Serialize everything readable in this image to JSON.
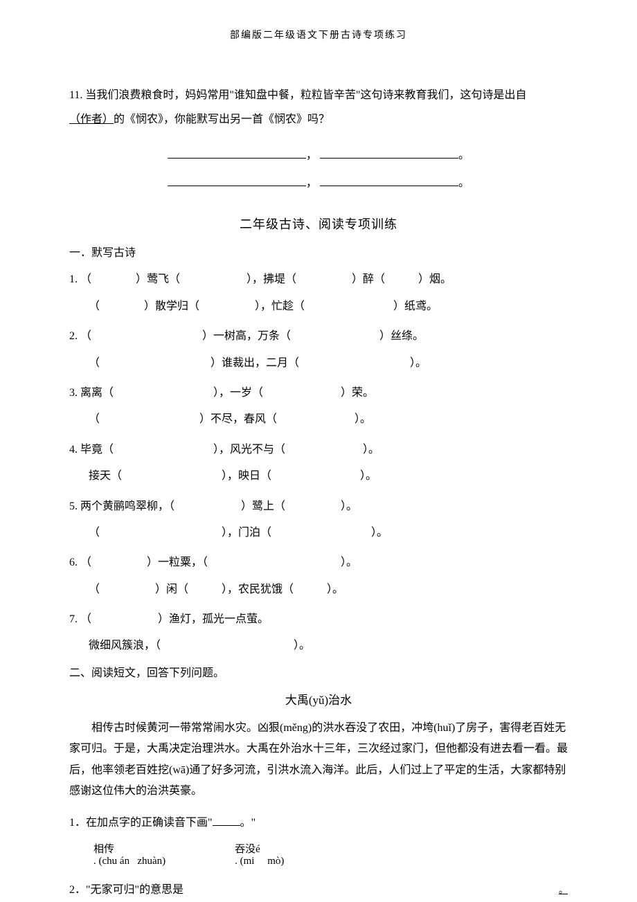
{
  "header": "部编版二年级语文下册古诗专项练习",
  "q11": {
    "number": "11.",
    "text_part1": "当我们浪费粮食时，妈妈常用\"谁知盘中餐，粒粒皆辛苦\"这句诗来教育我们，这句诗是出自",
    "author_underline": "（作者）",
    "text_part2": "的《悯农》，你能默写出另一首《悯农》吗？"
  },
  "blank_separator1": "，",
  "blank_separator2": "。",
  "section_title": "二年级古诗、阅读专项训练",
  "subsection1": "一．默写古诗",
  "exercises": [
    {
      "num": "1.",
      "line1": "（　　　　）莺飞（　　　　　　），拂堤（　　　　　）醉（　　　）烟。",
      "line2": "（　　　　）散学归（　　　　　），忙趁（　　　　　　　　）纸鸢。"
    },
    {
      "num": "2.",
      "line1": "（　　　　　　　　　　）一树高，万条（　　　　　　　　）丝绦。",
      "line2": "（　　　　　　　　　　）谁裁出，二月（　　　　　　　　　　）。"
    },
    {
      "num": "3.",
      "line1": "离离（　　　　　　　　　），一岁（　　　　　　　）荣。",
      "line2": "（　　　　　　　　　）不尽，春风（　　　　　　　）。"
    },
    {
      "num": "4.",
      "line1": "毕竟（　　　　　　　　　），风光不与（　　　　　　　）。",
      "line2": "接天（　　　　　　　　　），映日（　　　　　　　　）。"
    },
    {
      "num": "5.",
      "line1": "两个黄鹂鸣翠柳，（　　　　　　）鹭上（　　　　　）。",
      "line2": "（　　　　　　　　　　　），门泊（　　　　　　　　　）。"
    },
    {
      "num": "6.",
      "line1": "（　　　　　）一粒粟，（　　　　　　　　　　　　）。",
      "line2": "（　　　　　）闲（　　　），农民犹饿（　　　）。"
    },
    {
      "num": "7.",
      "line1": "（　　　　　　）渔灯，孤光一点萤。",
      "line2": "微细风簇浪，（　　　　　　　　　　　　）。"
    }
  ],
  "subsection2": "二、阅读短文，回答下列问题。",
  "story_title": "大禹(yǔ)治水",
  "story_text": "相传古时候黄河一带常常闹水灾。凶狠(měng)的洪水吞没了农田，冲垮(huǐ)了房子，害得老百姓无家可归。于是，大禹决定治理洪水。大禹在外治水十三年，三次经过家门，但他都没有进去看一看。最后，他率领老百姓挖(wā)通了好多河流，引洪水流入海洋。此后，人们过上了平定的生活，大家都特别感谢这位伟大的治洪英豪。",
  "reading_q1": {
    "num": "1．",
    "text": "在加点字的正确读音下画\"",
    "end": "。\""
  },
  "pinyin": {
    "word1": "相传",
    "pinyin1_a": "(chu",
    "pinyin1_b": "án",
    "pinyin1_c": "zhuàn)",
    "word2": "吞没",
    "pinyin2_a": "(mi",
    "pinyin2_b": "é",
    "pinyin2_c": "mò)",
    "dot": "."
  },
  "reading_q2": {
    "num": "2．",
    "text": "\"无家可归\"的意思是",
    "end": "。"
  },
  "colors": {
    "background": "#ffffff",
    "text": "#000000"
  }
}
